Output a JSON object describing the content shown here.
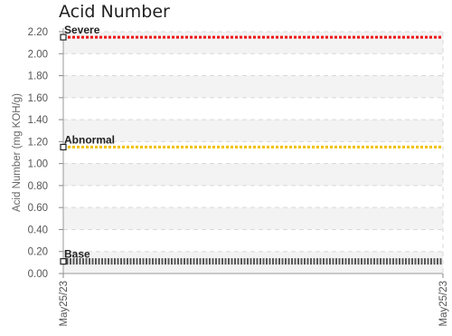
{
  "chart_data": {
    "type": "line",
    "title": "Acid Number",
    "ylabel": "Acid Number (mg KOH/g)",
    "xlabel": "",
    "ylim": [
      0,
      2.2
    ],
    "yticks": [
      "0.00",
      "0.20",
      "0.40",
      "0.60",
      "0.80",
      "1.00",
      "1.20",
      "1.40",
      "1.60",
      "1.80",
      "2.00",
      "2.20"
    ],
    "x": [
      "May25/23",
      "May25/23"
    ],
    "grid": true,
    "series": [
      {
        "name": "Severe",
        "values": [
          2.15,
          2.15
        ],
        "color": "#ee1111"
      },
      {
        "name": "Abnormal",
        "values": [
          1.15,
          1.15
        ],
        "color": "#f0c000"
      },
      {
        "name": "Base",
        "values": [
          0.11,
          0.11
        ],
        "color": "#555555"
      }
    ]
  }
}
